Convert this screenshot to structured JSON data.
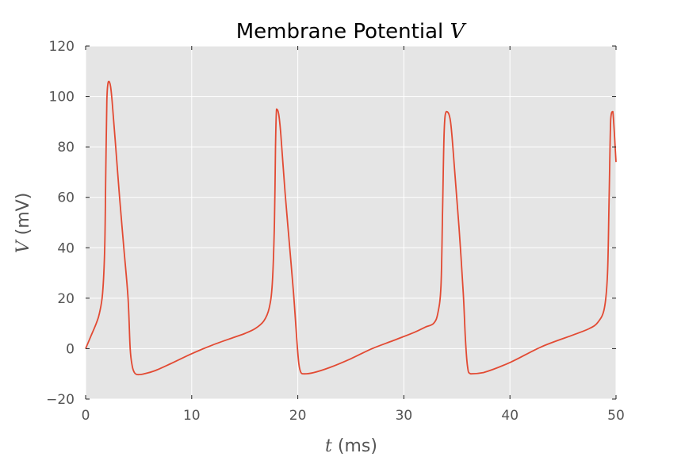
{
  "chart_data": {
    "type": "line",
    "title": "Membrane Potential",
    "title_variable": "V",
    "xlabel": "(ms)",
    "xlabel_variable": "t",
    "ylabel": "(mV)",
    "ylabel_variable": "V",
    "xlim": [
      0,
      50
    ],
    "ylim": [
      -20,
      120
    ],
    "x_ticks": [
      0,
      10,
      20,
      30,
      40,
      50
    ],
    "y_ticks": [
      -20,
      0,
      20,
      40,
      60,
      80,
      100,
      120
    ],
    "x_tick_labels": [
      "0",
      "10",
      "20",
      "30",
      "40",
      "50"
    ],
    "y_tick_labels": [
      "−20",
      "0",
      "20",
      "40",
      "60",
      "80",
      "100",
      "120"
    ],
    "grid": true,
    "legend": "none",
    "background_color": "#e5e5e5",
    "grid_color": "#ffffff",
    "series": [
      {
        "color": "#e24a33",
        "x": [
          0,
          0.5,
          1.0,
          1.3,
          1.6,
          1.8,
          1.9,
          2.0,
          2.1,
          2.2,
          2.35,
          2.5,
          2.8,
          3.2,
          3.6,
          4.0,
          4.2,
          4.4,
          4.6,
          4.8,
          5.0,
          5.5,
          6.5,
          8.0,
          10.0,
          12.0,
          14.0,
          15.0,
          16.0,
          16.8,
          17.3,
          17.6,
          17.8,
          17.9,
          18.0,
          18.2,
          18.4,
          18.8,
          19.2,
          19.6,
          19.9,
          20.1,
          20.3,
          20.6,
          21.5,
          23.0,
          25.0,
          27.0,
          29.0,
          31.0,
          32.0,
          32.8,
          33.2,
          33.5,
          33.65,
          33.8,
          34.0,
          34.4,
          34.8,
          35.2,
          35.6,
          35.8,
          36.0,
          36.3,
          37.5,
          40.0,
          43.0,
          46.0,
          47.5,
          48.3,
          48.9,
          49.2,
          49.35,
          49.5,
          49.7,
          50.0
        ],
        "y": [
          0,
          5,
          10,
          14,
          22,
          40,
          70,
          98,
          105,
          106,
          104,
          98,
          82,
          60,
          40,
          20,
          0,
          -7,
          -9.5,
          -10.2,
          -10.3,
          -10,
          -8.8,
          -6,
          -2,
          1.5,
          4.5,
          6,
          8,
          11,
          16,
          26,
          50,
          80,
          95,
          93,
          85,
          62,
          42,
          22,
          4,
          -6,
          -9.5,
          -10,
          -9.5,
          -7.5,
          -4,
          0,
          3.2,
          6.5,
          8.5,
          10,
          14,
          25,
          55,
          86,
          94,
          90,
          70,
          48,
          22,
          4,
          -7,
          -10,
          -9.5,
          -5.5,
          0.8,
          5.5,
          8,
          10.5,
          16,
          30,
          60,
          91,
          94,
          74
        ]
      }
    ]
  }
}
